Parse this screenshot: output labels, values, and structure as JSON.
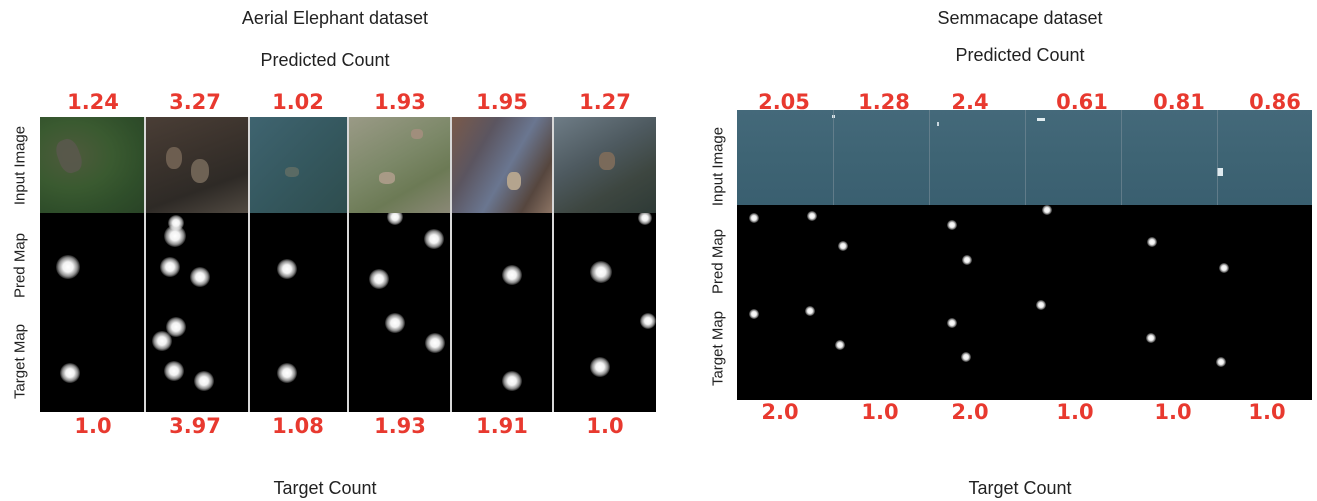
{
  "left_panel": {
    "title": "Aerial Elephant dataset",
    "predicted_heading": "Predicted Count",
    "target_heading": "Target Count",
    "predicted_counts": [
      "1.24",
      "3.27",
      "1.02",
      "1.93",
      "1.95",
      "1.27"
    ],
    "target_counts": [
      "1.0",
      "3.97",
      "1.08",
      "1.93",
      "1.91",
      "1.0"
    ],
    "row_labels": [
      "Input Image",
      "Pred Map",
      "Target Map"
    ]
  },
  "right_panel": {
    "title": "Semmacape dataset",
    "predicted_heading": "Predicted Count",
    "target_heading": "Target Count",
    "predicted_counts": [
      "2.05",
      "1.28",
      "2.4",
      "0.61",
      "0.81",
      "0.86"
    ],
    "target_counts": [
      "2.0",
      "1.0",
      "2.0",
      "1.0",
      "1.0",
      "1.0"
    ],
    "row_labels": [
      "Input Image",
      "Pred Map",
      "Target Map"
    ]
  },
  "colors": {
    "count_text": "#e8392f",
    "map_background": "#000000",
    "sea": "#3f6475"
  }
}
